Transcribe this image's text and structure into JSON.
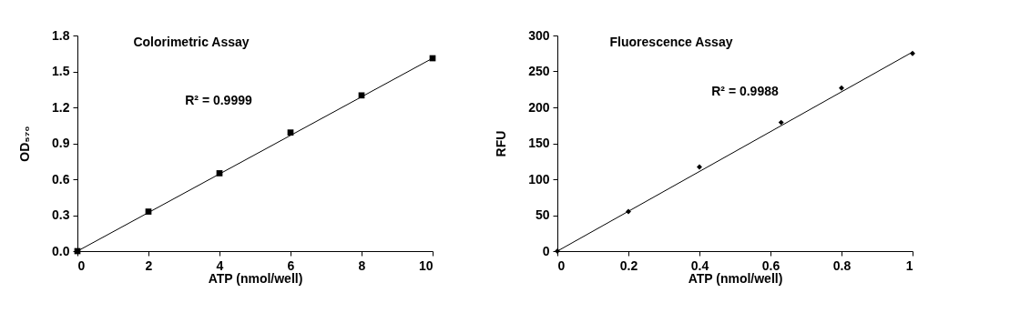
{
  "chart_data": [
    {
      "type": "scatter",
      "title": "Colorimetric Assay",
      "xlabel": "ATP (nmol/well)",
      "ylabel": "OD₅₇₀",
      "annotations": [
        "R² = 0.9999"
      ],
      "marker": "square",
      "x": [
        0,
        2,
        4,
        6,
        8,
        10
      ],
      "series": [
        {
          "color": "#000000",
          "values": [
            0,
            0.33,
            0.65,
            0.99,
            1.3,
            1.61
          ]
        },
        {
          "type": "line",
          "marker": "none",
          "color": "#000000",
          "x": [
            0,
            10
          ],
          "values": [
            0,
            1.61
          ]
        }
      ],
      "xlim": [
        0,
        10
      ],
      "xticks": [
        0,
        2,
        4,
        6,
        8,
        10
      ],
      "ylim": [
        0,
        1.8
      ],
      "yticks": [
        {
          "value": 0,
          "label": "0.0"
        },
        0.3,
        0.6,
        0.9,
        1.2,
        1.5,
        1.8
      ]
    },
    {
      "type": "scatter",
      "title": "Fluorescence Assay",
      "xlabel": "ATP (nmol/well)",
      "ylabel": "RFU",
      "annotations": [
        "R² = 0.9988"
      ],
      "marker": "diamond",
      "x": [
        0,
        0.2,
        0.4,
        0.63,
        0.8,
        1
      ],
      "series": [
        {
          "color": "#000000",
          "values": [
            0,
            55,
            117,
            179,
            227,
            275
          ]
        },
        {
          "type": "line",
          "marker": "none",
          "color": "#000000",
          "x": [
            0,
            1
          ],
          "values": [
            0,
            277
          ]
        }
      ],
      "xlim": [
        0,
        1
      ],
      "xticks": [
        0,
        0.2,
        0.4,
        0.6,
        0.8,
        1
      ],
      "ylim": [
        0,
        300
      ],
      "yticks": [
        0,
        50,
        100,
        150,
        200,
        250,
        300
      ]
    }
  ]
}
